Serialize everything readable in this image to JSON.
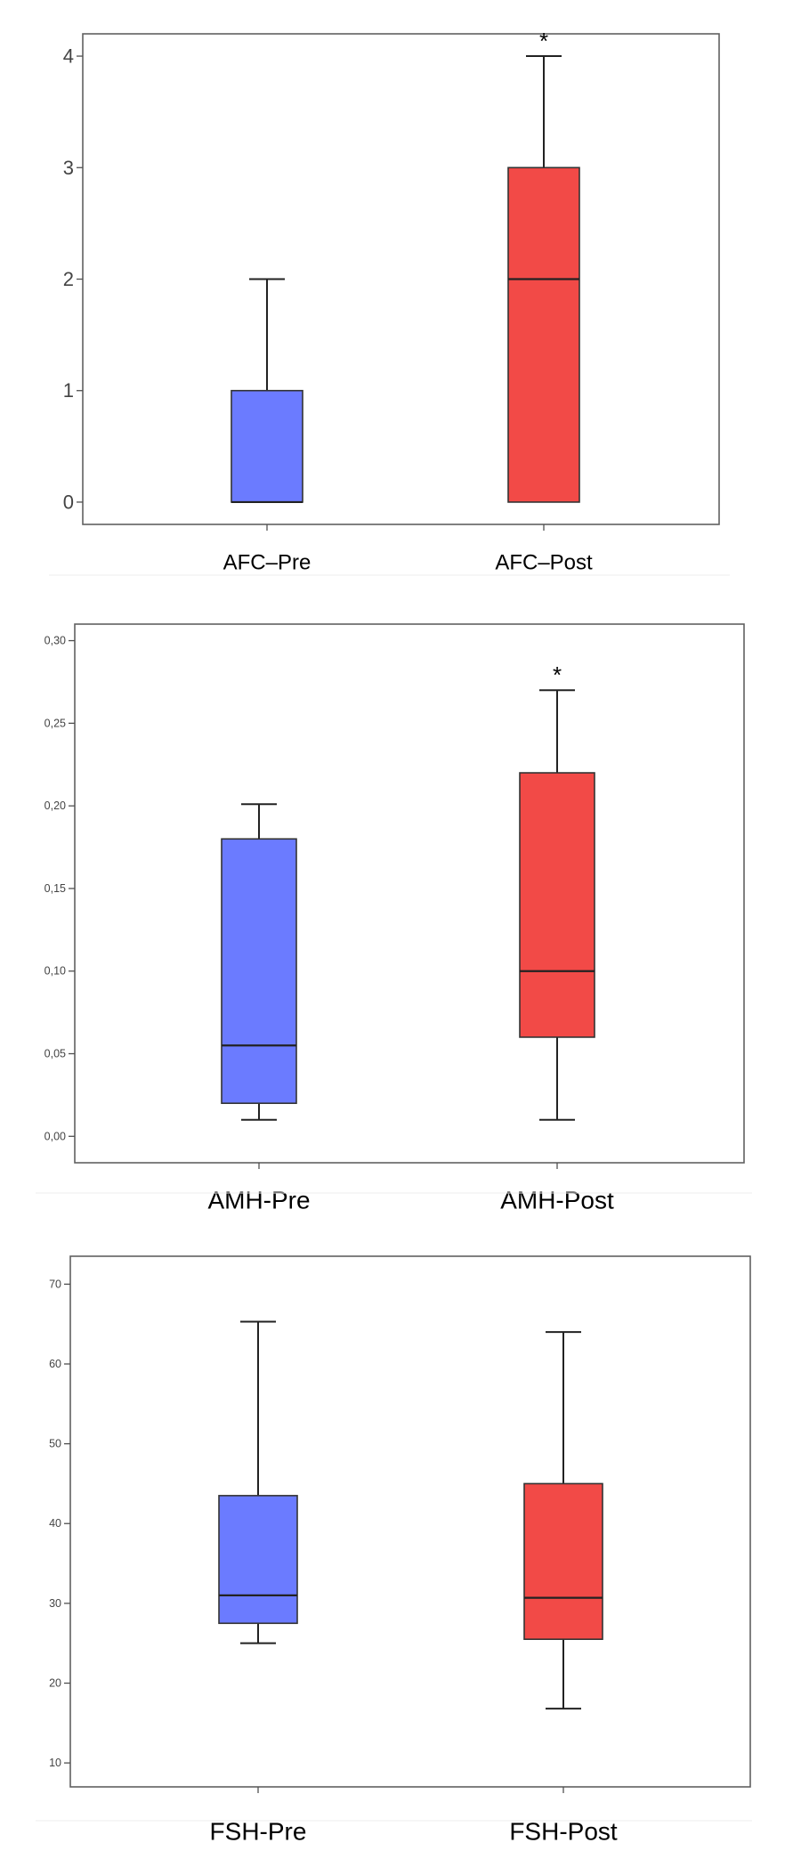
{
  "colors": {
    "pre": "#6b7bff",
    "post": "#f24a47"
  },
  "chart_data": [
    {
      "type": "boxplot",
      "title": "",
      "xlabel": "",
      "ylabel": "",
      "ylim": [
        -0.2,
        4.2
      ],
      "yticks": [
        0,
        1,
        2,
        3,
        4
      ],
      "ytick_labels": [
        "0",
        "1",
        "2",
        "3",
        "4"
      ],
      "categories": [
        "AFC–Pre",
        "AFC–Post"
      ],
      "series": [
        {
          "name": "AFC–Pre",
          "min": 0,
          "q1": 0,
          "median": 0,
          "q3": 1,
          "max": 2
        },
        {
          "name": "AFC–Post",
          "min": 0,
          "q1": 0,
          "median": 2,
          "q3": 3,
          "max": 4,
          "annotation": "*"
        }
      ]
    },
    {
      "type": "boxplot",
      "title": "",
      "xlabel": "",
      "ylabel": "",
      "ylim": [
        -0.016,
        0.31
      ],
      "yticks": [
        0,
        0.05,
        0.1,
        0.15,
        0.2,
        0.25,
        0.3
      ],
      "ytick_labels": [
        "0,00",
        "0,05",
        "0,10",
        "0,15",
        "0,20",
        "0,25",
        "0,30"
      ],
      "categories": [
        "AMH-Pre",
        "AMH-Post"
      ],
      "series": [
        {
          "name": "AMH-Pre",
          "min": 0.01,
          "q1": 0.02,
          "median": 0.055,
          "q3": 0.18,
          "max": 0.201
        },
        {
          "name": "AMH-Post",
          "min": 0.01,
          "q1": 0.06,
          "median": 0.1,
          "q3": 0.22,
          "max": 0.27,
          "annotation": "*"
        }
      ]
    },
    {
      "type": "boxplot",
      "title": "",
      "xlabel": "",
      "ylabel": "",
      "ylim": [
        7,
        73.5
      ],
      "yticks": [
        10,
        20,
        30,
        40,
        50,
        60,
        70
      ],
      "ytick_labels": [
        "10",
        "20",
        "30",
        "40",
        "50",
        "60",
        "70"
      ],
      "categories": [
        "FSH-Pre",
        "FSH-Post"
      ],
      "series": [
        {
          "name": "FSH-Pre",
          "min": 25,
          "q1": 27.5,
          "median": 31,
          "q3": 43.5,
          "max": 65.3
        },
        {
          "name": "FSH-Post",
          "min": 16.8,
          "q1": 25.5,
          "median": 30.7,
          "q3": 45,
          "max": 64
        }
      ]
    }
  ]
}
